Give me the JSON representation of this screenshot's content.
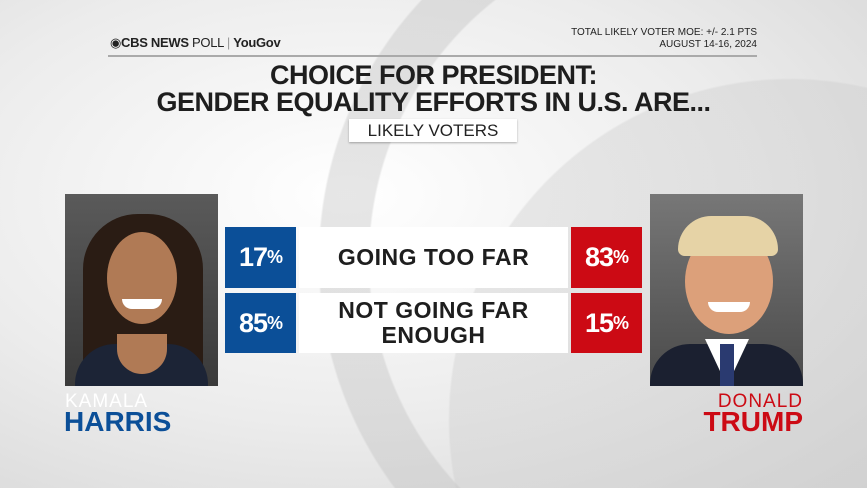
{
  "header": {
    "logo_brand": "CBS NEWS",
    "logo_poll": "POLL",
    "logo_partner": "YouGov",
    "moe": "TOTAL LIKELY VOTER MOE: +/- 2.1 PTS",
    "dates": "AUGUST 14-16, 2024"
  },
  "title_line1": "CHOICE FOR PRESIDENT:",
  "title_line2": "GENDER EQUALITY EFFORTS IN U.S. ARE...",
  "badge": "LIKELY VOTERS",
  "candidates": {
    "left": {
      "first": "KAMALA",
      "last": "HARRIS",
      "color": "#0b4f98"
    },
    "right": {
      "first": "DONALD",
      "last": "TRUMP",
      "color": "#cc0a14"
    }
  },
  "chart_data": {
    "type": "table",
    "columns": [
      "HARRIS",
      "",
      "TRUMP"
    ],
    "rows": [
      {
        "label": "GOING TOO FAR",
        "label_lines": [
          "GOING TOO FAR"
        ],
        "harris": 17,
        "trump": 83
      },
      {
        "label": "NOT GOING FAR ENOUGH",
        "label_lines": [
          "NOT GOING FAR",
          "ENOUGH"
        ],
        "harris": 85,
        "trump": 15
      }
    ],
    "unit": "%"
  }
}
